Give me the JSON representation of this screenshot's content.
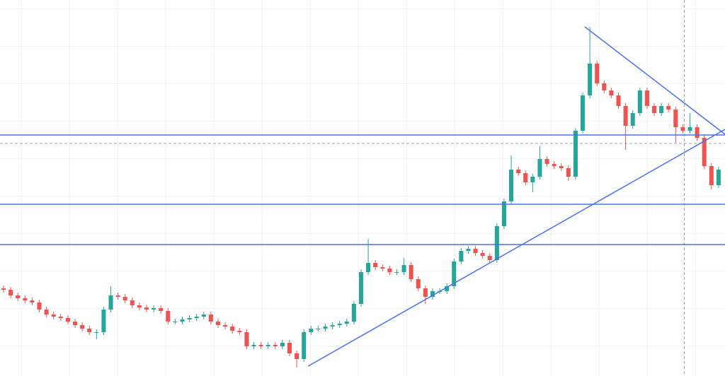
{
  "chart_data": {
    "type": "candlestick",
    "xlim": [
      -0.5,
      100.9
    ],
    "ylim": [
      0,
      532
    ],
    "up_color": "#26a69a",
    "down_color": "#ef5350",
    "line_color": "#4a72e8",
    "marker_color": "#9aa0a8",
    "open": [
      124,
      122,
      114,
      110,
      107,
      104,
      94,
      87,
      84,
      82,
      77,
      72,
      67,
      62,
      62,
      94,
      114,
      112,
      107,
      100,
      97,
      94,
      96,
      92,
      77,
      77,
      80,
      82,
      84,
      87,
      77,
      72,
      70,
      64,
      62,
      42,
      44,
      42,
      44,
      42,
      47,
      32,
      24,
      62,
      67,
      67,
      70,
      72,
      74,
      77,
      102,
      147,
      160,
      154,
      152,
      147,
      147,
      157,
      137,
      124,
      112,
      120,
      120,
      127,
      162,
      177,
      180,
      174,
      170,
      164,
      212,
      247,
      292,
      287,
      274,
      282,
      307,
      300,
      297,
      294,
      282,
      347,
      397,
      442,
      414,
      404,
      397,
      382,
      354,
      372,
      404,
      382,
      372,
      382,
      377,
      352,
      347,
      352,
      337,
      297,
      270
    ],
    "high": [
      128,
      126,
      118,
      114,
      111,
      108,
      98,
      91,
      88,
      86,
      81,
      76,
      71,
      66,
      98,
      127,
      118,
      116,
      111,
      104,
      101,
      100,
      100,
      96,
      81,
      84,
      86,
      88,
      91,
      91,
      81,
      76,
      74,
      68,
      66,
      48,
      48,
      48,
      48,
      51,
      51,
      36,
      66,
      71,
      71,
      74,
      76,
      78,
      81,
      106,
      151,
      194,
      164,
      158,
      156,
      151,
      167,
      161,
      141,
      128,
      124,
      124,
      131,
      166,
      181,
      184,
      184,
      178,
      174,
      216,
      251,
      312,
      296,
      291,
      286,
      325,
      311,
      304,
      301,
      298,
      351,
      401,
      494,
      446,
      418,
      408,
      401,
      386,
      376,
      408,
      408,
      386,
      386,
      386,
      381,
      356,
      372,
      356,
      341,
      301,
      296
    ],
    "low": [
      118,
      110,
      106,
      103,
      100,
      90,
      83,
      80,
      78,
      73,
      68,
      63,
      58,
      52,
      58,
      90,
      108,
      103,
      96,
      93,
      90,
      90,
      88,
      73,
      73,
      73,
      76,
      78,
      80,
      73,
      68,
      66,
      60,
      58,
      38,
      38,
      38,
      38,
      38,
      38,
      28,
      12,
      20,
      58,
      63,
      63,
      66,
      68,
      70,
      73,
      98,
      143,
      150,
      148,
      143,
      143,
      143,
      133,
      120,
      102,
      108,
      116,
      116,
      123,
      158,
      173,
      170,
      166,
      160,
      160,
      208,
      243,
      283,
      270,
      260,
      278,
      296,
      293,
      290,
      276,
      278,
      343,
      393,
      410,
      400,
      393,
      378,
      320,
      350,
      368,
      378,
      368,
      368,
      373,
      330,
      343,
      343,
      333,
      293,
      264,
      266
    ],
    "close": [
      122,
      114,
      110,
      107,
      104,
      94,
      87,
      84,
      82,
      77,
      72,
      67,
      62,
      62,
      94,
      114,
      112,
      107,
      100,
      97,
      94,
      96,
      92,
      77,
      77,
      80,
      82,
      84,
      87,
      77,
      72,
      70,
      64,
      62,
      42,
      44,
      42,
      44,
      42,
      47,
      32,
      24,
      62,
      67,
      67,
      70,
      72,
      74,
      77,
      102,
      147,
      160,
      154,
      152,
      147,
      147,
      157,
      137,
      124,
      112,
      120,
      120,
      127,
      162,
      177,
      180,
      174,
      170,
      164,
      212,
      247,
      292,
      287,
      274,
      282,
      307,
      300,
      297,
      294,
      282,
      347,
      397,
      442,
      414,
      404,
      397,
      382,
      354,
      372,
      404,
      382,
      372,
      382,
      377,
      352,
      347,
      352,
      337,
      297,
      270,
      292
    ],
    "hlines": [
      341,
      243,
      186
    ],
    "price_line": 329,
    "cursor_x": 95.2,
    "trendlines": [
      {
        "x": [
          42.6,
          100.9
        ],
        "y": [
          14,
          349
        ]
      },
      {
        "x": [
          81.3,
          100.9
        ],
        "y": [
          494,
          342
        ]
      }
    ]
  }
}
